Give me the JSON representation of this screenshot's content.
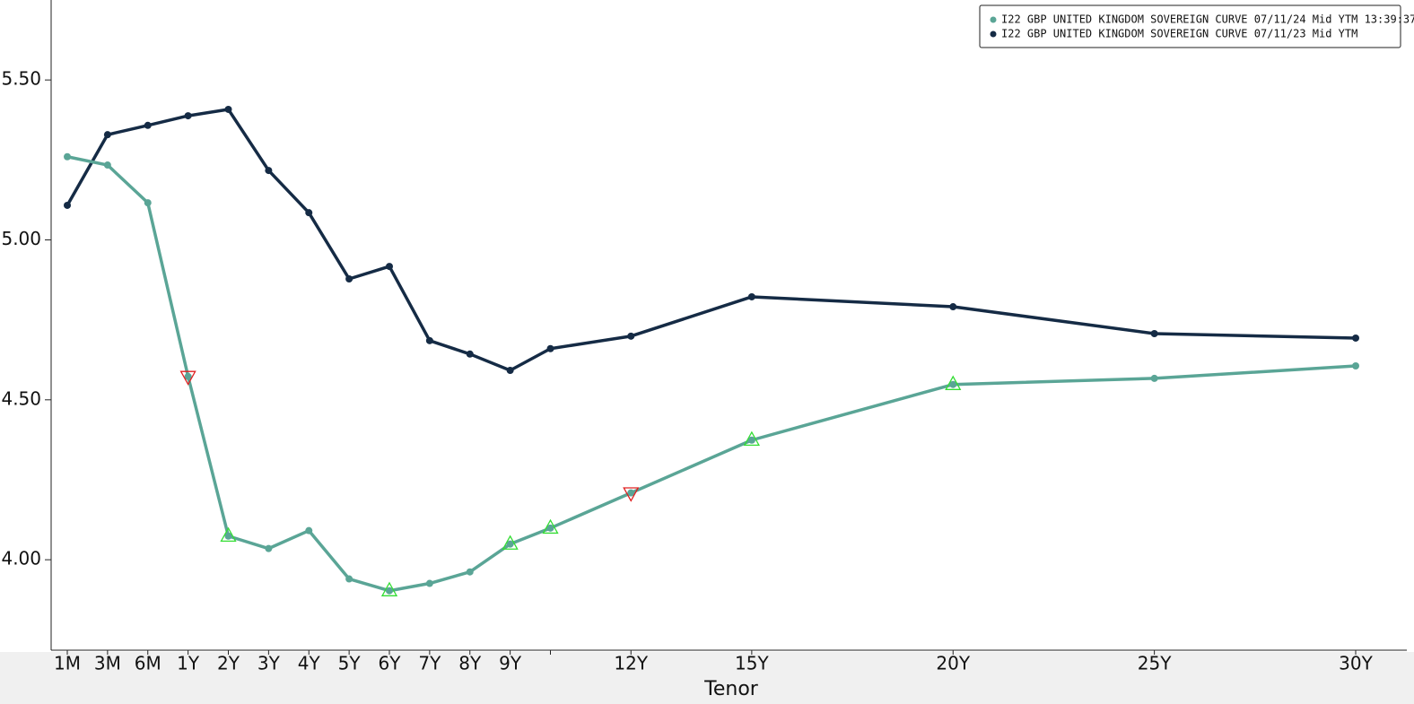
{
  "chart_data": {
    "type": "line",
    "x_label": "Tenor",
    "categories": [
      "1M",
      "3M",
      "6M",
      "1Y",
      "2Y",
      "3Y",
      "4Y",
      "5Y",
      "6Y",
      "7Y",
      "8Y",
      "9Y",
      null,
      "12Y",
      "15Y",
      "20Y",
      "25Y",
      "30Y"
    ],
    "series": [
      {
        "name": "I22 GBP UNITED KINGDOM SOVEREIGN CURVE 07/11/24 Mid YTM 13:39:37",
        "color": "#5aa596",
        "values": [
          5.26,
          5.234,
          5.116,
          4.573,
          4.074,
          4.035,
          4.091,
          3.94,
          3.903,
          3.926,
          3.962,
          4.049,
          4.099,
          4.209,
          4.374,
          4.548,
          4.567,
          4.606
        ],
        "flags": [
          null,
          null,
          null,
          "down",
          "up",
          null,
          null,
          null,
          "up",
          null,
          null,
          "up",
          "up",
          "down",
          "up",
          "up",
          null,
          null
        ]
      },
      {
        "name": "I22 GBP UNITED KINGDOM SOVEREIGN CURVE 07/11/23 Mid YTM",
        "color": "#152b45",
        "values": [
          5.108,
          5.329,
          5.358,
          5.388,
          5.408,
          5.217,
          5.085,
          4.878,
          4.917,
          4.685,
          4.643,
          4.592,
          4.66,
          4.699,
          4.822,
          4.791,
          4.707,
          4.693
        ]
      }
    ],
    "ylim": [
      3.72,
      5.75
    ],
    "yticks": [
      {
        "value": 4,
        "label": "4.00"
      },
      {
        "value": 4.5,
        "label": "4.50"
      },
      {
        "value": 5,
        "label": "5.00"
      },
      {
        "value": 5.5,
        "label": "5.50"
      }
    ],
    "legend": "top-right"
  }
}
